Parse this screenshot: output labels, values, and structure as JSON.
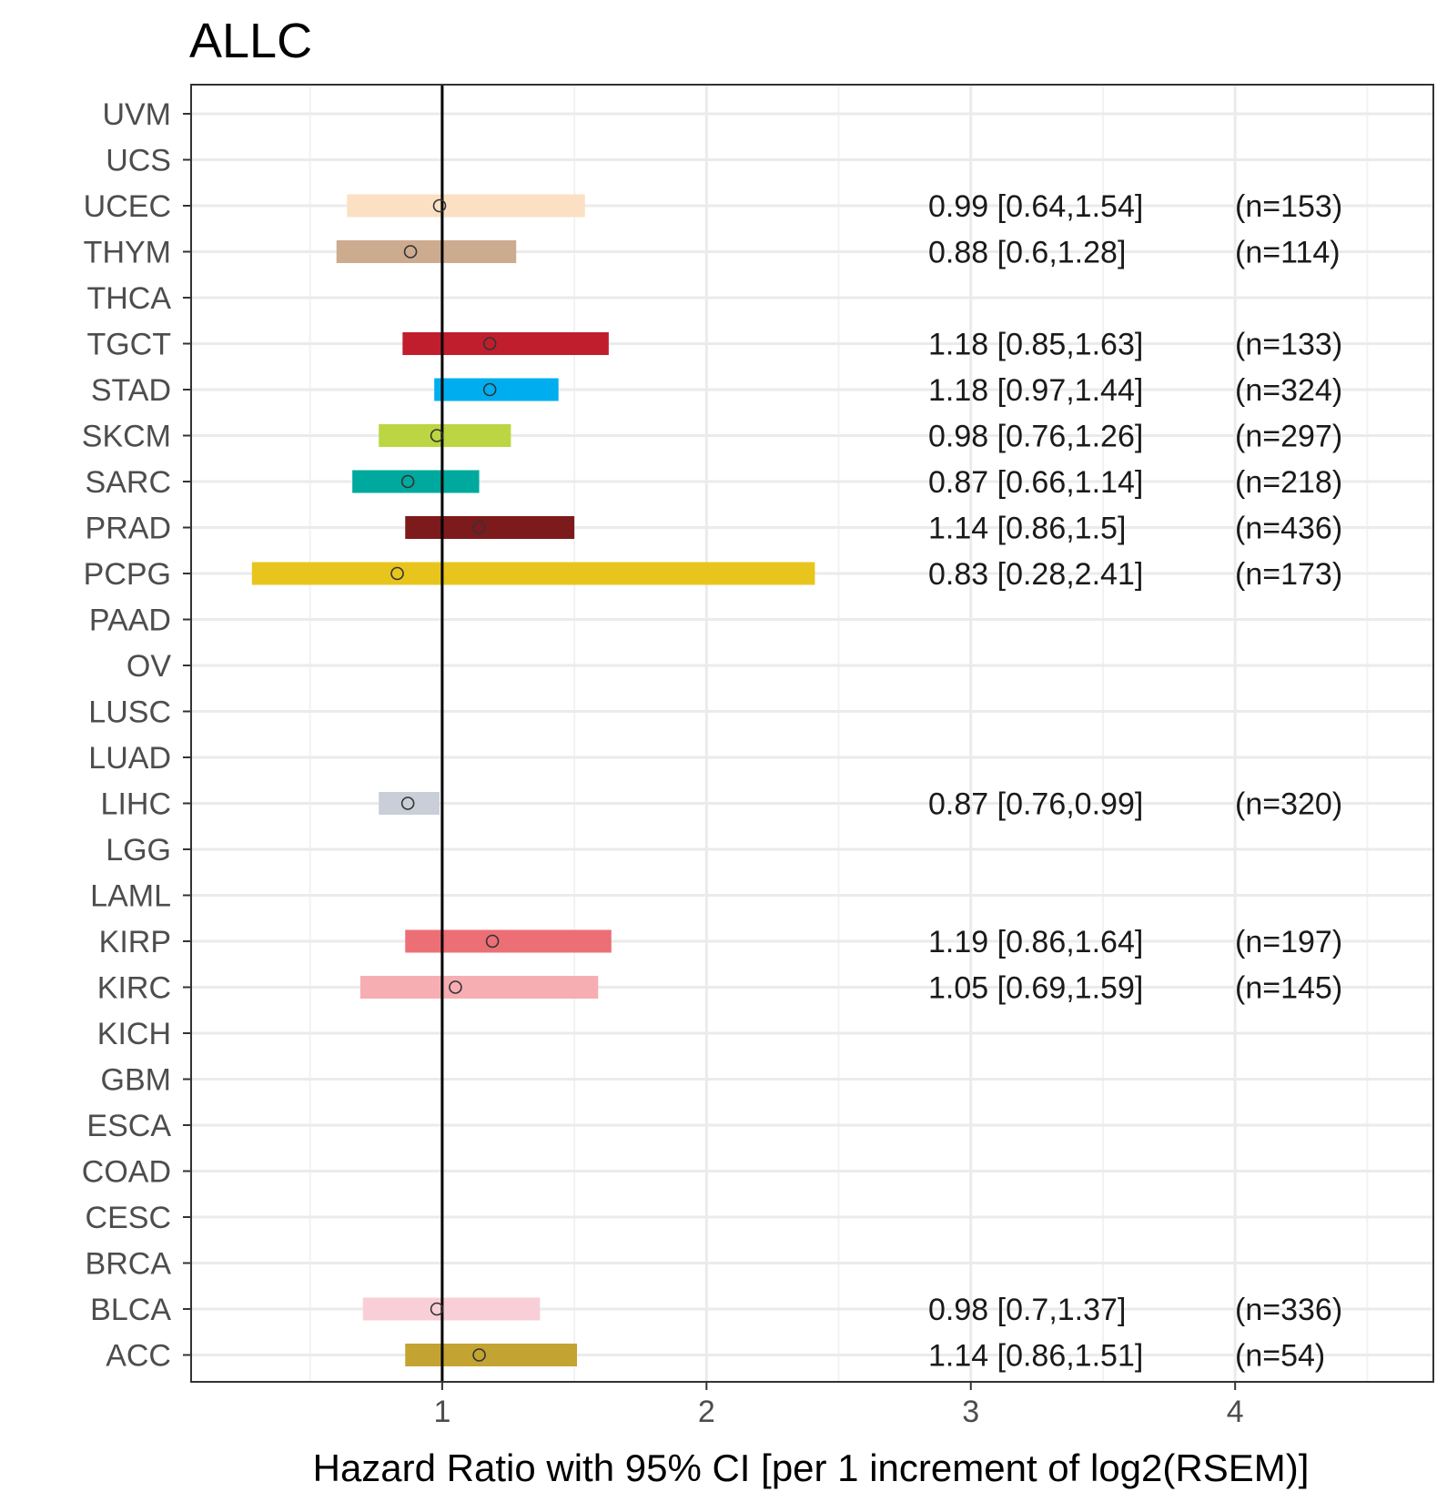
{
  "chart_data": {
    "type": "forest",
    "title": "ALLC",
    "xlabel": "Hazard Ratio with 95% CI [per 1 increment of log2(RSEM)]",
    "ylabel": "",
    "xlim": [
      0.05,
      4.75
    ],
    "xticks": [
      1,
      2,
      3,
      4
    ],
    "xtick_labels": [
      "1",
      "2",
      "3",
      "4"
    ],
    "reference_line": 1,
    "categories": [
      "UVM",
      "UCS",
      "UCEC",
      "THYM",
      "THCA",
      "TGCT",
      "STAD",
      "SKCM",
      "SARC",
      "PRAD",
      "PCPG",
      "PAAD",
      "OV",
      "LUSC",
      "LUAD",
      "LIHC",
      "LGG",
      "LAML",
      "KIRP",
      "KIRC",
      "KICH",
      "GBM",
      "ESCA",
      "COAD",
      "CESC",
      "BRCA",
      "BLCA",
      "ACC"
    ],
    "rows": [
      {
        "label": "UCEC",
        "hr": 0.99,
        "lower": 0.64,
        "upper": 1.54,
        "ci_text": "0.99 [0.64,1.54]",
        "n_text": "(n=153)",
        "color": "#FBE0C4"
      },
      {
        "label": "THYM",
        "hr": 0.88,
        "lower": 0.6,
        "upper": 1.28,
        "ci_text": "0.88 [0.6,1.28]",
        "n_text": "(n=114)",
        "color": "#CDAB8F"
      },
      {
        "label": "TGCT",
        "hr": 1.18,
        "lower": 0.85,
        "upper": 1.63,
        "ci_text": "1.18 [0.85,1.63]",
        "n_text": "(n=133)",
        "color": "#C01E2D"
      },
      {
        "label": "STAD",
        "hr": 1.18,
        "lower": 0.97,
        "upper": 1.44,
        "ci_text": "1.18 [0.97,1.44]",
        "n_text": "(n=324)",
        "color": "#00AEEF"
      },
      {
        "label": "SKCM",
        "hr": 0.98,
        "lower": 0.76,
        "upper": 1.26,
        "ci_text": "0.98 [0.76,1.26]",
        "n_text": "(n=297)",
        "color": "#BBD642"
      },
      {
        "label": "SARC",
        "hr": 0.87,
        "lower": 0.66,
        "upper": 1.14,
        "ci_text": "0.87 [0.66,1.14]",
        "n_text": "(n=218)",
        "color": "#00A99D"
      },
      {
        "label": "PRAD",
        "hr": 1.14,
        "lower": 0.86,
        "upper": 1.5,
        "ci_text": "1.14 [0.86,1.5]",
        "n_text": "(n=436)",
        "color": "#7D1A1C"
      },
      {
        "label": "PCPG",
        "hr": 0.83,
        "lower": 0.28,
        "upper": 2.41,
        "ci_text": "0.83 [0.28,2.41]",
        "n_text": "(n=173)",
        "color": "#E8C51D"
      },
      {
        "label": "LIHC",
        "hr": 0.87,
        "lower": 0.76,
        "upper": 0.99,
        "ci_text": "0.87 [0.76,0.99]",
        "n_text": "(n=320)",
        "color": "#CACED9"
      },
      {
        "label": "KIRP",
        "hr": 1.19,
        "lower": 0.86,
        "upper": 1.64,
        "ci_text": "1.19 [0.86,1.64]",
        "n_text": "(n=197)",
        "color": "#EC6F75"
      },
      {
        "label": "KIRC",
        "hr": 1.05,
        "lower": 0.69,
        "upper": 1.59,
        "ci_text": "1.05 [0.69,1.59]",
        "n_text": "(n=145)",
        "color": "#F6AEB3"
      },
      {
        "label": "BLCA",
        "hr": 0.98,
        "lower": 0.7,
        "upper": 1.37,
        "ci_text": "0.98 [0.7,1.37]",
        "n_text": "(n=336)",
        "color": "#F9CFD7"
      },
      {
        "label": "ACC",
        "hr": 1.14,
        "lower": 0.86,
        "upper": 1.51,
        "ci_text": "1.14 [0.86,1.51]",
        "n_text": "(n=54)",
        "color": "#C3A332"
      }
    ],
    "colors": {
      "grid_major": "#EBEBEB",
      "grid_minor": "#F2F2F2",
      "panel_border": "#333333",
      "reference_line": "#000000",
      "axis_text": "#4d4d4d"
    }
  }
}
